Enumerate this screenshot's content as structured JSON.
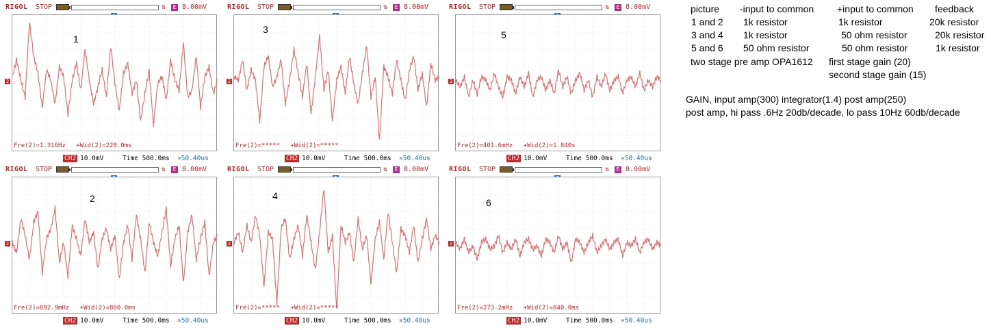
{
  "scopes": [
    {
      "id": 1,
      "label": "1",
      "brand": "RIGOL",
      "state": "STOP",
      "trig": "8.00mV",
      "ch": "2",
      "ch_scale": "CH2",
      "v_div": "10.0mV",
      "time_div": "Time 500.0ms",
      "t_offset": "»50.40us",
      "freq": "Fre(2)=1.316Hz",
      "width": "+Wid(2)=220.0ms",
      "signal": [
        0.1,
        0.35,
        0.05,
        -0.2,
        0.9,
        0.4,
        0.15,
        -0.35,
        0.2,
        0.05,
        -0.3,
        0.25,
        0.1,
        -0.45,
        0.05,
        0.3,
        -0.1,
        0.5,
        0.05,
        -0.3,
        -0.05,
        0.2,
        -0.2,
        0.55,
        0.0,
        -0.4,
        0.15,
        0.3,
        -0.15,
        0.05,
        -0.55,
        -0.15,
        0.2,
        -0.6,
        0.0,
        0.1,
        -0.25,
        0.35,
        0.05,
        -0.1,
        0.6,
        -0.2,
        -0.1,
        0.4,
        -0.35,
        0.1,
        0.25,
        -0.15,
        0.05
      ]
    },
    {
      "id": 2,
      "label": "2",
      "brand": "RIGOL",
      "state": "STOP",
      "trig": "8.00mV",
      "ch": "2",
      "ch_scale": "CH2",
      "v_div": "10.0mV",
      "time_div": "Time 500.0ms",
      "t_offset": "»50.40us",
      "freq": "Fre(2)=892.9mHz",
      "width": "+Wid(2)=860.0ms",
      "signal": [
        0.05,
        -0.1,
        0.4,
        0.15,
        -0.2,
        0.35,
        0.5,
        -0.4,
        0.1,
        0.25,
        0.55,
        -0.25,
        0.05,
        -0.45,
        0.3,
        0.1,
        -0.15,
        0.4,
        0.05,
        0.2,
        -0.35,
        0.1,
        0.25,
        -0.05,
        0.15,
        -0.5,
        0.05,
        0.3,
        -0.2,
        0.45,
        0.1,
        -0.4,
        0.35,
        0.05,
        -0.15,
        0.2,
        0.55,
        -0.3,
        0.1,
        0.3,
        -0.55,
        0.2,
        0.45,
        -0.2,
        0.1,
        0.35,
        -0.45,
        0.05,
        0.15
      ]
    },
    {
      "id": 3,
      "label": "3",
      "brand": "RIGOL",
      "state": "STOP",
      "trig": "8.00mV",
      "ch": "2",
      "ch_scale": "CH2",
      "v_div": "10.0mV",
      "time_div": "Time 500.0ms",
      "t_offset": "»50.40us",
      "freq": "Fre(2)=*****",
      "width": "+Wid(2)=*****",
      "signal": [
        0.1,
        0.05,
        0.35,
        -0.1,
        0.2,
        0.05,
        -0.55,
        0.25,
        0.4,
        -0.05,
        0.1,
        0.35,
        -0.3,
        0.05,
        0.5,
        0.15,
        -0.2,
        0.3,
        -0.45,
        0.1,
        0.7,
        -0.1,
        0.2,
        -0.55,
        0.05,
        0.25,
        -0.15,
        0.4,
        0.0,
        -0.3,
        0.15,
        0.55,
        -0.2,
        0.1,
        -0.85,
        0.25,
        0.1,
        -0.15,
        0.35,
        0.05,
        -0.25,
        0.2,
        0.4,
        -0.1,
        0.15,
        -0.35,
        0.3,
        0.05,
        0.1
      ]
    },
    {
      "id": 4,
      "label": "4",
      "brand": "RIGOL",
      "state": "STOP",
      "trig": "8.00mV",
      "ch": "2",
      "ch_scale": "CH2",
      "v_div": "10.0mV",
      "time_div": "Time 500.0ms",
      "t_offset": "»50.40us",
      "freq": "Fre(2)=*****",
      "width": "+Wid(2)=*****",
      "signal": [
        0.05,
        0.2,
        -0.1,
        0.3,
        0.05,
        0.45,
        0.15,
        -0.6,
        0.2,
        0.1,
        -0.85,
        0.25,
        0.4,
        -0.2,
        0.1,
        0.3,
        -0.15,
        0.45,
        0.05,
        -0.35,
        0.2,
        0.85,
        -0.1,
        0.15,
        -0.95,
        0.3,
        0.05,
        0.2,
        -0.25,
        0.4,
        -0.05,
        0.15,
        -0.55,
        0.1,
        0.35,
        -0.2,
        0.5,
        0.05,
        -0.4,
        0.25,
        0.15,
        -0.1,
        0.3,
        -0.25,
        0.1,
        0.4,
        -0.05,
        0.15,
        0.05
      ]
    },
    {
      "id": 5,
      "label": "5",
      "brand": "RIGOL",
      "state": "STOP",
      "trig": "8.00mV",
      "ch": "2",
      "ch_scale": "CH2",
      "v_div": "10.0mV",
      "time_div": "Time 500.0ms",
      "t_offset": "»50.40us",
      "freq": "Fre(2)=401.6mHz",
      "width": "+Wid(2)=1.840s",
      "signal": [
        0.05,
        -0.05,
        0.1,
        -0.2,
        0.05,
        -0.15,
        0.1,
        0.05,
        -0.1,
        0.15,
        -0.05,
        -0.2,
        0.1,
        0.05,
        -0.15,
        0.1,
        -0.05,
        0.15,
        -0.2,
        0.05,
        0.1,
        -0.1,
        0.05,
        -0.15,
        0.2,
        -0.05,
        0.1,
        -0.15,
        0.05,
        0.15,
        -0.1,
        0.05,
        -0.2,
        0.1,
        -0.05,
        0.15,
        -0.1,
        0.05,
        0.1,
        -0.15,
        0.05,
        0.1,
        -0.05,
        0.15,
        -0.1,
        0.05,
        -0.05,
        0.1,
        0.05
      ]
    },
    {
      "id": 6,
      "label": "6",
      "brand": "RIGOL",
      "state": "STOP",
      "trig": "8.00mV",
      "ch": "2",
      "ch_scale": "CH2",
      "v_div": "10.0mV",
      "time_div": "Time 500.0ms",
      "t_offset": "»50.40us",
      "freq": "Fre(2)=273.2mHz",
      "width": "+Wid(2)=840.0ms",
      "signal": [
        0.05,
        -0.05,
        0.1,
        -0.1,
        0.0,
        -0.2,
        0.05,
        0.1,
        -0.05,
        0.0,
        0.15,
        -0.1,
        0.05,
        -0.05,
        0.1,
        -0.15,
        0.05,
        0.1,
        -0.05,
        0.0,
        -0.15,
        0.1,
        0.05,
        -0.1,
        0.15,
        -0.05,
        0.05,
        -0.25,
        0.1,
        0.05,
        -0.1,
        0.05,
        0.15,
        -0.1,
        0.0,
        0.1,
        -0.05,
        0.05,
        0.1,
        -0.15,
        0.05,
        0.0,
        0.1,
        -0.1,
        0.05,
        0.1,
        -0.05,
        0.05,
        0.0
      ]
    }
  ],
  "notes": {
    "h_picture": "picture",
    "h_neg": "-input to common",
    "h_pos": "+input to common",
    "h_fb": "feedback",
    "r1_pic": "1 and 2",
    "r1_neg": "1k resistor",
    "r1_pos": "1k resistor",
    "r1_fb": "20k resistor",
    "r2_pic": "3 and 4",
    "r2_neg": "1k resistor",
    "r2_pos": "50 ohm resistor",
    "r2_fb": "20k resistor",
    "r3_pic": "5 and 6",
    "r3_neg": "50 ohm resistor",
    "r3_pos": "50 ohm resistor",
    "r3_fb": "1k resistor",
    "preamp": "two stage pre amp OPA1612",
    "stage1": "first stage gain (20)",
    "stage2": "second stage gain (15)",
    "gain": "GAIN, input amp(300) integrator(1.4) post amp(250)",
    "postamp": "post amp, hi pass .6Hz 20db/decade, lo pass 10Hz 60db/decade"
  },
  "colors": {
    "trace": "#e07070",
    "grid": "#c8c8c8",
    "brand": "#cc2222",
    "accent": "#1a6ec8"
  }
}
